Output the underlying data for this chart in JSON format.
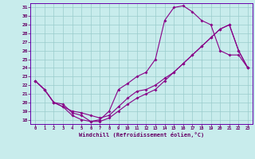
{
  "xlabel": "Windchill (Refroidissement éolien,°C)",
  "bg_color": "#c8ecec",
  "line_color": "#880088",
  "grid_color": "#99cccc",
  "xlim": [
    -0.5,
    23.5
  ],
  "ylim": [
    17.5,
    31.5
  ],
  "xticks": [
    0,
    1,
    2,
    3,
    4,
    5,
    6,
    7,
    8,
    9,
    10,
    11,
    12,
    13,
    14,
    15,
    16,
    17,
    18,
    19,
    20,
    21,
    22,
    23
  ],
  "yticks": [
    18,
    19,
    20,
    21,
    22,
    23,
    24,
    25,
    26,
    27,
    28,
    29,
    30,
    31
  ],
  "line1_x": [
    0,
    1,
    2,
    3,
    4,
    5,
    6,
    7,
    8,
    9,
    10,
    11,
    12,
    13,
    14,
    15,
    16,
    17,
    18,
    19,
    20,
    21,
    22,
    23
  ],
  "line1_y": [
    22.5,
    21.5,
    20.0,
    19.8,
    18.8,
    18.5,
    17.8,
    18.0,
    19.0,
    21.5,
    22.2,
    23.0,
    23.5,
    25.0,
    29.5,
    31.0,
    31.2,
    30.5,
    29.5,
    29.0,
    26.0,
    25.5,
    25.5,
    24.0
  ],
  "line2_x": [
    0,
    1,
    2,
    3,
    4,
    5,
    6,
    7,
    8,
    9,
    10,
    11,
    12,
    13,
    14,
    15,
    16,
    17,
    18,
    19,
    20,
    21,
    22,
    23
  ],
  "line2_y": [
    22.5,
    21.5,
    20.0,
    19.5,
    19.0,
    18.8,
    18.5,
    18.2,
    18.5,
    19.5,
    20.5,
    21.3,
    21.5,
    22.0,
    22.8,
    23.5,
    24.5,
    25.5,
    26.5,
    27.5,
    28.5,
    29.0,
    26.0,
    24.0
  ],
  "line3_x": [
    0,
    1,
    2,
    3,
    4,
    5,
    6,
    7,
    8,
    9,
    10,
    11,
    12,
    13,
    14,
    15,
    16,
    17,
    18,
    19,
    20,
    21,
    22,
    23
  ],
  "line3_y": [
    22.5,
    21.5,
    20.0,
    19.5,
    18.5,
    18.0,
    17.8,
    17.8,
    18.2,
    19.0,
    19.8,
    20.5,
    21.0,
    21.5,
    22.5,
    23.5,
    24.5,
    25.5,
    26.5,
    27.5,
    28.5,
    29.0,
    26.0,
    24.0
  ]
}
